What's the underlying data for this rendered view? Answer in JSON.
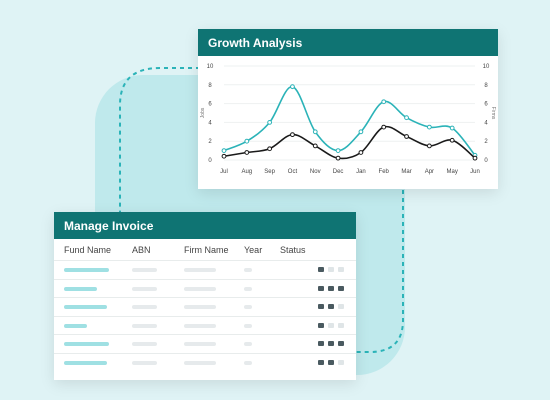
{
  "growth_card": {
    "title": "Growth Analysis"
  },
  "chart_data": {
    "type": "line",
    "title": "Growth Analysis",
    "categories": [
      "Jul",
      "Aug",
      "Sep",
      "Oct",
      "Nov",
      "Dec",
      "Jan",
      "Feb",
      "Mar",
      "Apr",
      "May",
      "Jun"
    ],
    "ylabel": "Jobs",
    "ylabel_right": "Firms",
    "ylim": [
      0,
      10
    ],
    "yticks": [
      0,
      2,
      4,
      6,
      8,
      10
    ],
    "series": [
      {
        "color": "#2bb3b8",
        "values": [
          1,
          2,
          4,
          7.8,
          3,
          1,
          3,
          6.2,
          4.5,
          3.5,
          3.4,
          0.5
        ]
      },
      {
        "color": "#1a1a1a",
        "values": [
          0.4,
          0.8,
          1.2,
          2.7,
          1.5,
          0.2,
          0.8,
          3.5,
          2.5,
          1.5,
          2.1,
          0.2
        ]
      }
    ],
    "grid": true,
    "legend": "none"
  },
  "invoice_card": {
    "title": "Manage Invoice",
    "columns": [
      "Fund Name",
      "ABN",
      "Firm Name",
      "Year",
      "Status"
    ],
    "rows": [
      {
        "fund": 0.9,
        "abn": 0.7,
        "firm": 0.8,
        "year": 0.6,
        "status": [
          1,
          0,
          0
        ]
      },
      {
        "fund": 0.65,
        "abn": 0.7,
        "firm": 0.8,
        "year": 0.6,
        "status": [
          1,
          1,
          1
        ]
      },
      {
        "fund": 0.85,
        "abn": 0.7,
        "firm": 0.8,
        "year": 0.6,
        "status": [
          1,
          1,
          0
        ]
      },
      {
        "fund": 0.45,
        "abn": 0.7,
        "firm": 0.8,
        "year": 0.6,
        "status": [
          1,
          0,
          0
        ]
      },
      {
        "fund": 0.9,
        "abn": 0.7,
        "firm": 0.8,
        "year": 0.6,
        "status": [
          1,
          1,
          1
        ]
      },
      {
        "fund": 0.85,
        "abn": 0.7,
        "firm": 0.8,
        "year": 0.6,
        "status": [
          1,
          1,
          0
        ]
      }
    ]
  },
  "colors": {
    "accent": "#0f7473",
    "background": "#dff3f5",
    "blob": "#bfe9ec",
    "dash": "#2bb3b8"
  }
}
